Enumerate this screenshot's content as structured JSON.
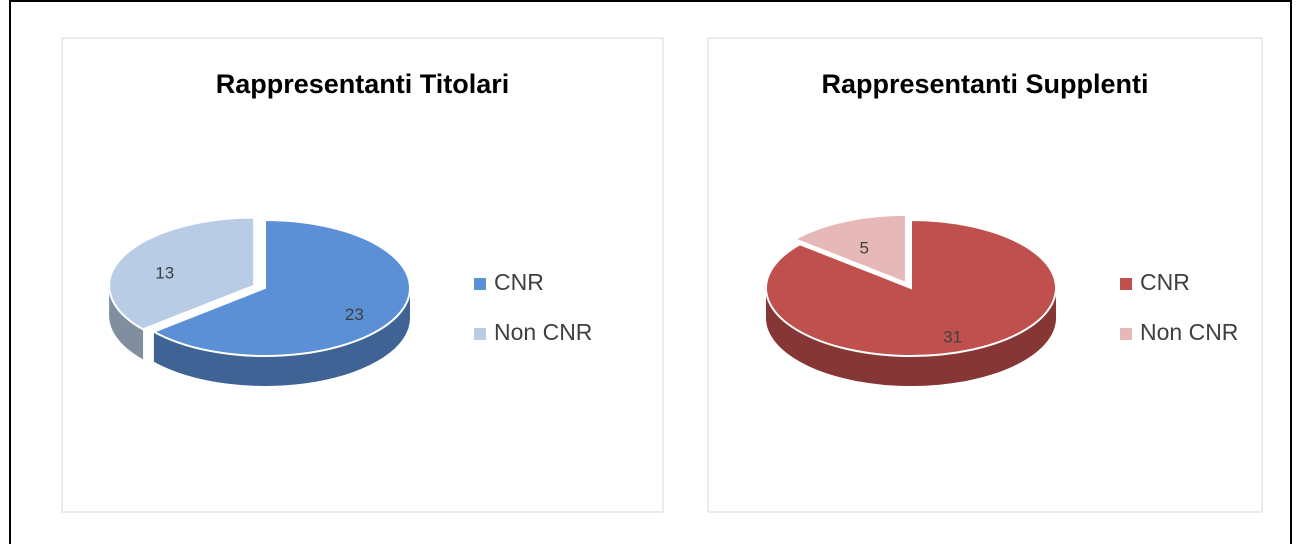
{
  "chart_data": [
    {
      "type": "pie",
      "title": "Rappresentanti Titolari",
      "categories": [
        "CNR",
        "Non CNR"
      ],
      "values": [
        23,
        13
      ],
      "colors": [
        "#5b8fd6",
        "#b9cce6"
      ]
    },
    {
      "type": "pie",
      "title": "Rappresentanti Supplenti",
      "categories": [
        "CNR",
        "Non CNR"
      ],
      "values": [
        31,
        5
      ],
      "colors": [
        "#c0504d",
        "#e6b9b8"
      ]
    }
  ]
}
